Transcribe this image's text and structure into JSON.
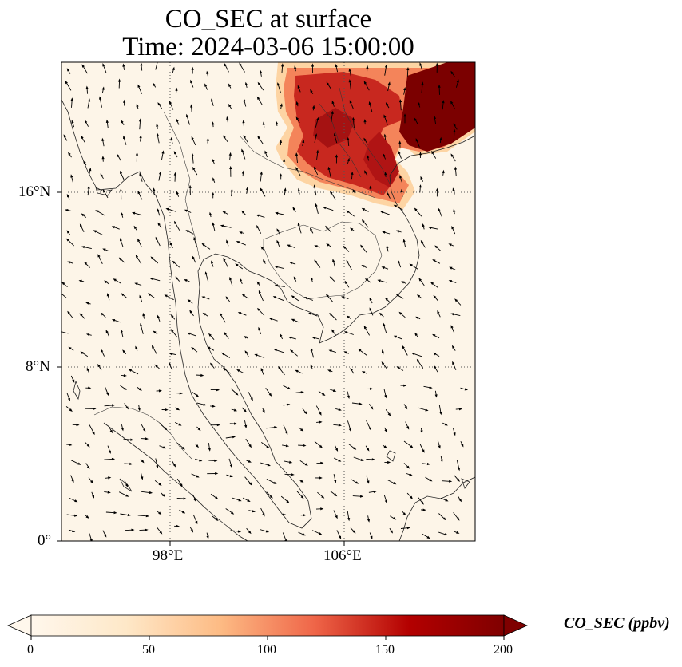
{
  "figure": {
    "title_line1": "CO_SEC at surface",
    "title_line2": "Time: 2024-03-06 15:00:00"
  },
  "map": {
    "lon_labels": [
      "98°E",
      "106°E"
    ],
    "lat_labels": [
      "16°N",
      "8°N",
      "0°"
    ],
    "field": "CO_SEC",
    "background_color": "#fdf5e8",
    "plume_colors": [
      "#fdd4a3",
      "#f4845a",
      "#c8281f",
      "#7b0000"
    ]
  },
  "colorbar": {
    "label": "CO_SEC (ppbv)",
    "ticks": [
      "0",
      "50",
      "100",
      "150",
      "200"
    ],
    "vmin": 0,
    "vmax": 200,
    "extend": "both",
    "colormap": "OrRd",
    "stops": [
      "#fff7ec",
      "#fdd49e",
      "#fc8d59",
      "#d7301f",
      "#b30000",
      "#7f0000"
    ]
  }
}
